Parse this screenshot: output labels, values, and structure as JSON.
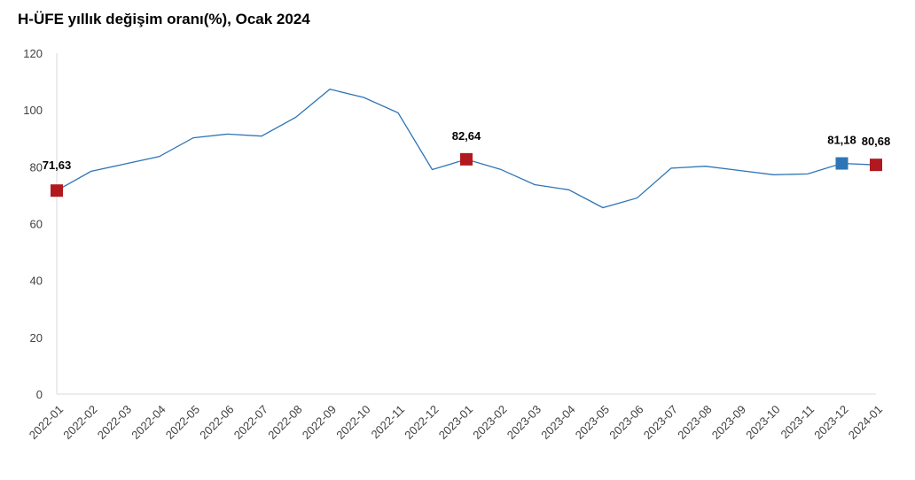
{
  "chart_data": {
    "type": "line",
    "title": "H-ÜFE yıllık değişim oranı(%), Ocak 2024",
    "xlabel": "",
    "ylabel": "",
    "ylim": [
      0,
      120
    ],
    "yticks": [
      0,
      20,
      40,
      60,
      80,
      100,
      120
    ],
    "grid": false,
    "legend": "none",
    "x": [
      "2022-01",
      "2022-02",
      "2022-03",
      "2022-04",
      "2022-05",
      "2022-06",
      "2022-07",
      "2022-08",
      "2022-09",
      "2022-10",
      "2022-11",
      "2022-12",
      "2023-01",
      "2023-02",
      "2023-03",
      "2023-04",
      "2023-05",
      "2023-06",
      "2023-07",
      "2023-08",
      "2023-09",
      "2023-10",
      "2023-11",
      "2023-12",
      "2024-01"
    ],
    "series": [
      {
        "values": [
          71.63,
          78.4,
          81.0,
          83.6,
          90.2,
          91.5,
          90.8,
          97.4,
          107.3,
          104.4,
          99.0,
          79.0,
          82.64,
          79.1,
          73.7,
          71.9,
          65.6,
          69.0,
          79.5,
          80.2,
          78.7,
          77.2,
          77.5,
          81.18,
          80.68
        ],
        "color": "#2e75b6"
      }
    ],
    "markers": [
      {
        "index": 0,
        "label": "71,63",
        "color": "#b2191e"
      },
      {
        "index": 12,
        "label": "82,64",
        "color": "#b2191e"
      },
      {
        "index": 23,
        "label": "81,18",
        "color": "#2e75b6"
      },
      {
        "index": 24,
        "label": "80,68",
        "color": "#b2191e"
      }
    ]
  }
}
